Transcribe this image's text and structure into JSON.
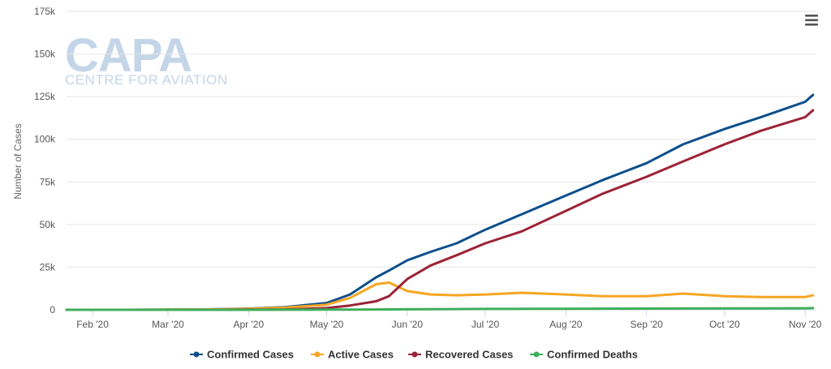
{
  "watermark": {
    "logo": "CAPA",
    "tagline": "CENTRE FOR AVIATION"
  },
  "menu_icon": "hamburger-menu-icon",
  "chart_data": {
    "type": "line",
    "ylabel": "Number of Cases",
    "xlabel": "",
    "ylim": [
      0,
      175000
    ],
    "yticks": [
      0,
      25000,
      50000,
      75000,
      100000,
      125000,
      150000,
      175000
    ],
    "ytick_labels": [
      "0",
      "25k",
      "50k",
      "75k",
      "100k",
      "125k",
      "150k",
      "175k"
    ],
    "xlim": [
      "2020-01-22",
      "2020-11-05"
    ],
    "xticks": [
      "2020-02-01",
      "2020-03-01",
      "2020-04-01",
      "2020-05-01",
      "2020-06-01",
      "2020-07-01",
      "2020-08-01",
      "2020-09-01",
      "2020-10-01",
      "2020-11-01"
    ],
    "xtick_labels": [
      "Feb '20",
      "Mar '20",
      "Apr '20",
      "May '20",
      "Jun '20",
      "Jul '20",
      "Aug '20",
      "Sep '20",
      "Oct '20",
      "Nov '20"
    ],
    "grid": "horizontal",
    "legend": "bottom",
    "x": [
      "2020-01-22",
      "2020-02-01",
      "2020-02-15",
      "2020-03-01",
      "2020-03-15",
      "2020-04-01",
      "2020-04-15",
      "2020-05-01",
      "2020-05-10",
      "2020-05-20",
      "2020-05-25",
      "2020-06-01",
      "2020-06-10",
      "2020-06-20",
      "2020-07-01",
      "2020-07-15",
      "2020-08-01",
      "2020-08-15",
      "2020-09-01",
      "2020-09-15",
      "2020-10-01",
      "2020-10-15",
      "2020-11-01",
      "2020-11-04"
    ],
    "series": [
      {
        "name": "Confirmed Cases",
        "color": "#0c4f8c",
        "values": [
          0,
          0,
          0,
          100,
          200,
          700,
          1500,
          4000,
          9000,
          19000,
          23000,
          29000,
          34000,
          39000,
          47000,
          56000,
          67000,
          76000,
          86000,
          97000,
          106000,
          113000,
          122000,
          126000
        ]
      },
      {
        "name": "Active Cases",
        "color": "#f5a623",
        "values": [
          0,
          0,
          0,
          100,
          200,
          600,
          1300,
          3000,
          7000,
          15000,
          16000,
          11000,
          9000,
          8500,
          9000,
          10000,
          9000,
          8000,
          8000,
          9500,
          8000,
          7500,
          7500,
          8500
        ]
      },
      {
        "name": "Recovered Cases",
        "color": "#9b2335",
        "values": [
          0,
          0,
          0,
          0,
          0,
          100,
          200,
          1000,
          2500,
          5000,
          8000,
          18000,
          26000,
          32000,
          39000,
          46000,
          58000,
          68000,
          78000,
          87000,
          97000,
          105000,
          113000,
          117000
        ]
      },
      {
        "name": "Confirmed Deaths",
        "color": "#3fae5a",
        "values": [
          0,
          0,
          0,
          0,
          0,
          0,
          50,
          100,
          150,
          200,
          250,
          300,
          400,
          450,
          500,
          550,
          600,
          650,
          700,
          750,
          800,
          850,
          900,
          1000
        ]
      }
    ]
  }
}
